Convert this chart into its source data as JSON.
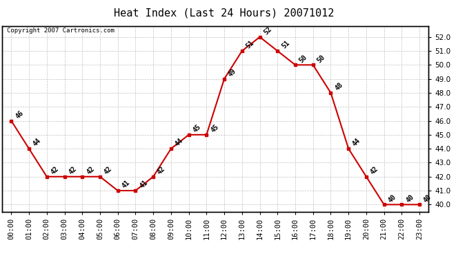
{
  "title": "Heat Index (Last 24 Hours) 20071012",
  "copyright": "Copyright 2007 Cartronics.com",
  "hours": [
    "00:00",
    "01:00",
    "02:00",
    "03:00",
    "04:00",
    "05:00",
    "06:00",
    "07:00",
    "08:00",
    "09:00",
    "10:00",
    "11:00",
    "12:00",
    "13:00",
    "14:00",
    "15:00",
    "16:00",
    "17:00",
    "18:00",
    "19:00",
    "20:00",
    "21:00",
    "22:00",
    "23:00"
  ],
  "values": [
    46,
    44,
    42,
    42,
    42,
    42,
    41,
    41,
    42,
    44,
    45,
    45,
    49,
    51,
    52,
    51,
    50,
    50,
    48,
    44,
    42,
    40,
    40,
    40
  ],
  "ylim_min": 39.5,
  "ylim_max": 52.8,
  "yticks": [
    40.0,
    41.0,
    42.0,
    43.0,
    44.0,
    45.0,
    46.0,
    47.0,
    48.0,
    49.0,
    50.0,
    51.0,
    52.0
  ],
  "line_color": "#cc0000",
  "marker_color": "#cc0000",
  "bg_color": "#ffffff",
  "grid_color": "#c0c0c0",
  "title_fontsize": 11,
  "label_fontsize": 7,
  "copyright_fontsize": 6.5,
  "axis_label_fontsize": 7.5
}
